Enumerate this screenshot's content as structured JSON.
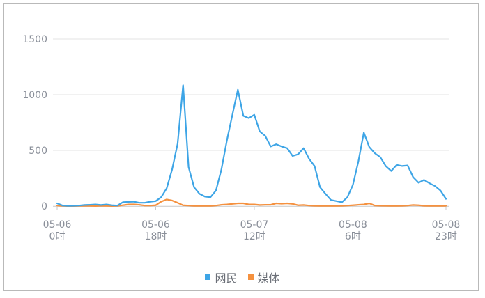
{
  "chart_data": {
    "type": "line",
    "ylim": [
      0,
      1600
    ],
    "yticks": [
      0,
      500,
      1000,
      1500
    ],
    "xticks": [
      {
        "i": 0,
        "line1": "05-06",
        "line2": "0时"
      },
      {
        "i": 18,
        "line1": "05-06",
        "line2": "18时"
      },
      {
        "i": 36,
        "line1": "05-07",
        "line2": "12时"
      },
      {
        "i": 54,
        "line1": "05-08",
        "line2": "6时"
      },
      {
        "i": 71,
        "line1": "05-08",
        "line2": "23时"
      }
    ],
    "grid": true,
    "legend_position": "bottom",
    "series": [
      {
        "name": "网民",
        "color": "#3ea5e6",
        "values": [
          25,
          5,
          2,
          3,
          5,
          10,
          12,
          15,
          10,
          15,
          8,
          5,
          35,
          38,
          40,
          30,
          30,
          40,
          45,
          80,
          160,
          330,
          560,
          1085,
          350,
          170,
          110,
          85,
          80,
          140,
          330,
          590,
          820,
          1045,
          810,
          790,
          820,
          670,
          630,
          535,
          555,
          535,
          520,
          450,
          465,
          520,
          425,
          360,
          170,
          110,
          55,
          45,
          35,
          80,
          190,
          400,
          660,
          530,
          475,
          440,
          360,
          315,
          370,
          360,
          365,
          260,
          210,
          235,
          205,
          180,
          140,
          65
        ]
      },
      {
        "name": "媒体",
        "color": "#f5913f",
        "values": [
          5,
          2,
          0,
          1,
          2,
          3,
          2,
          1,
          3,
          2,
          1,
          2,
          8,
          15,
          16,
          12,
          5,
          5,
          8,
          40,
          60,
          50,
          30,
          8,
          5,
          2,
          2,
          3,
          2,
          5,
          12,
          15,
          20,
          25,
          25,
          15,
          15,
          10,
          12,
          12,
          25,
          22,
          25,
          20,
          8,
          10,
          5,
          3,
          2,
          2,
          3,
          2,
          3,
          5,
          8,
          12,
          15,
          25,
          5,
          4,
          3,
          2,
          2,
          3,
          5,
          10,
          8,
          3,
          2,
          2,
          2,
          3
        ]
      }
    ]
  }
}
